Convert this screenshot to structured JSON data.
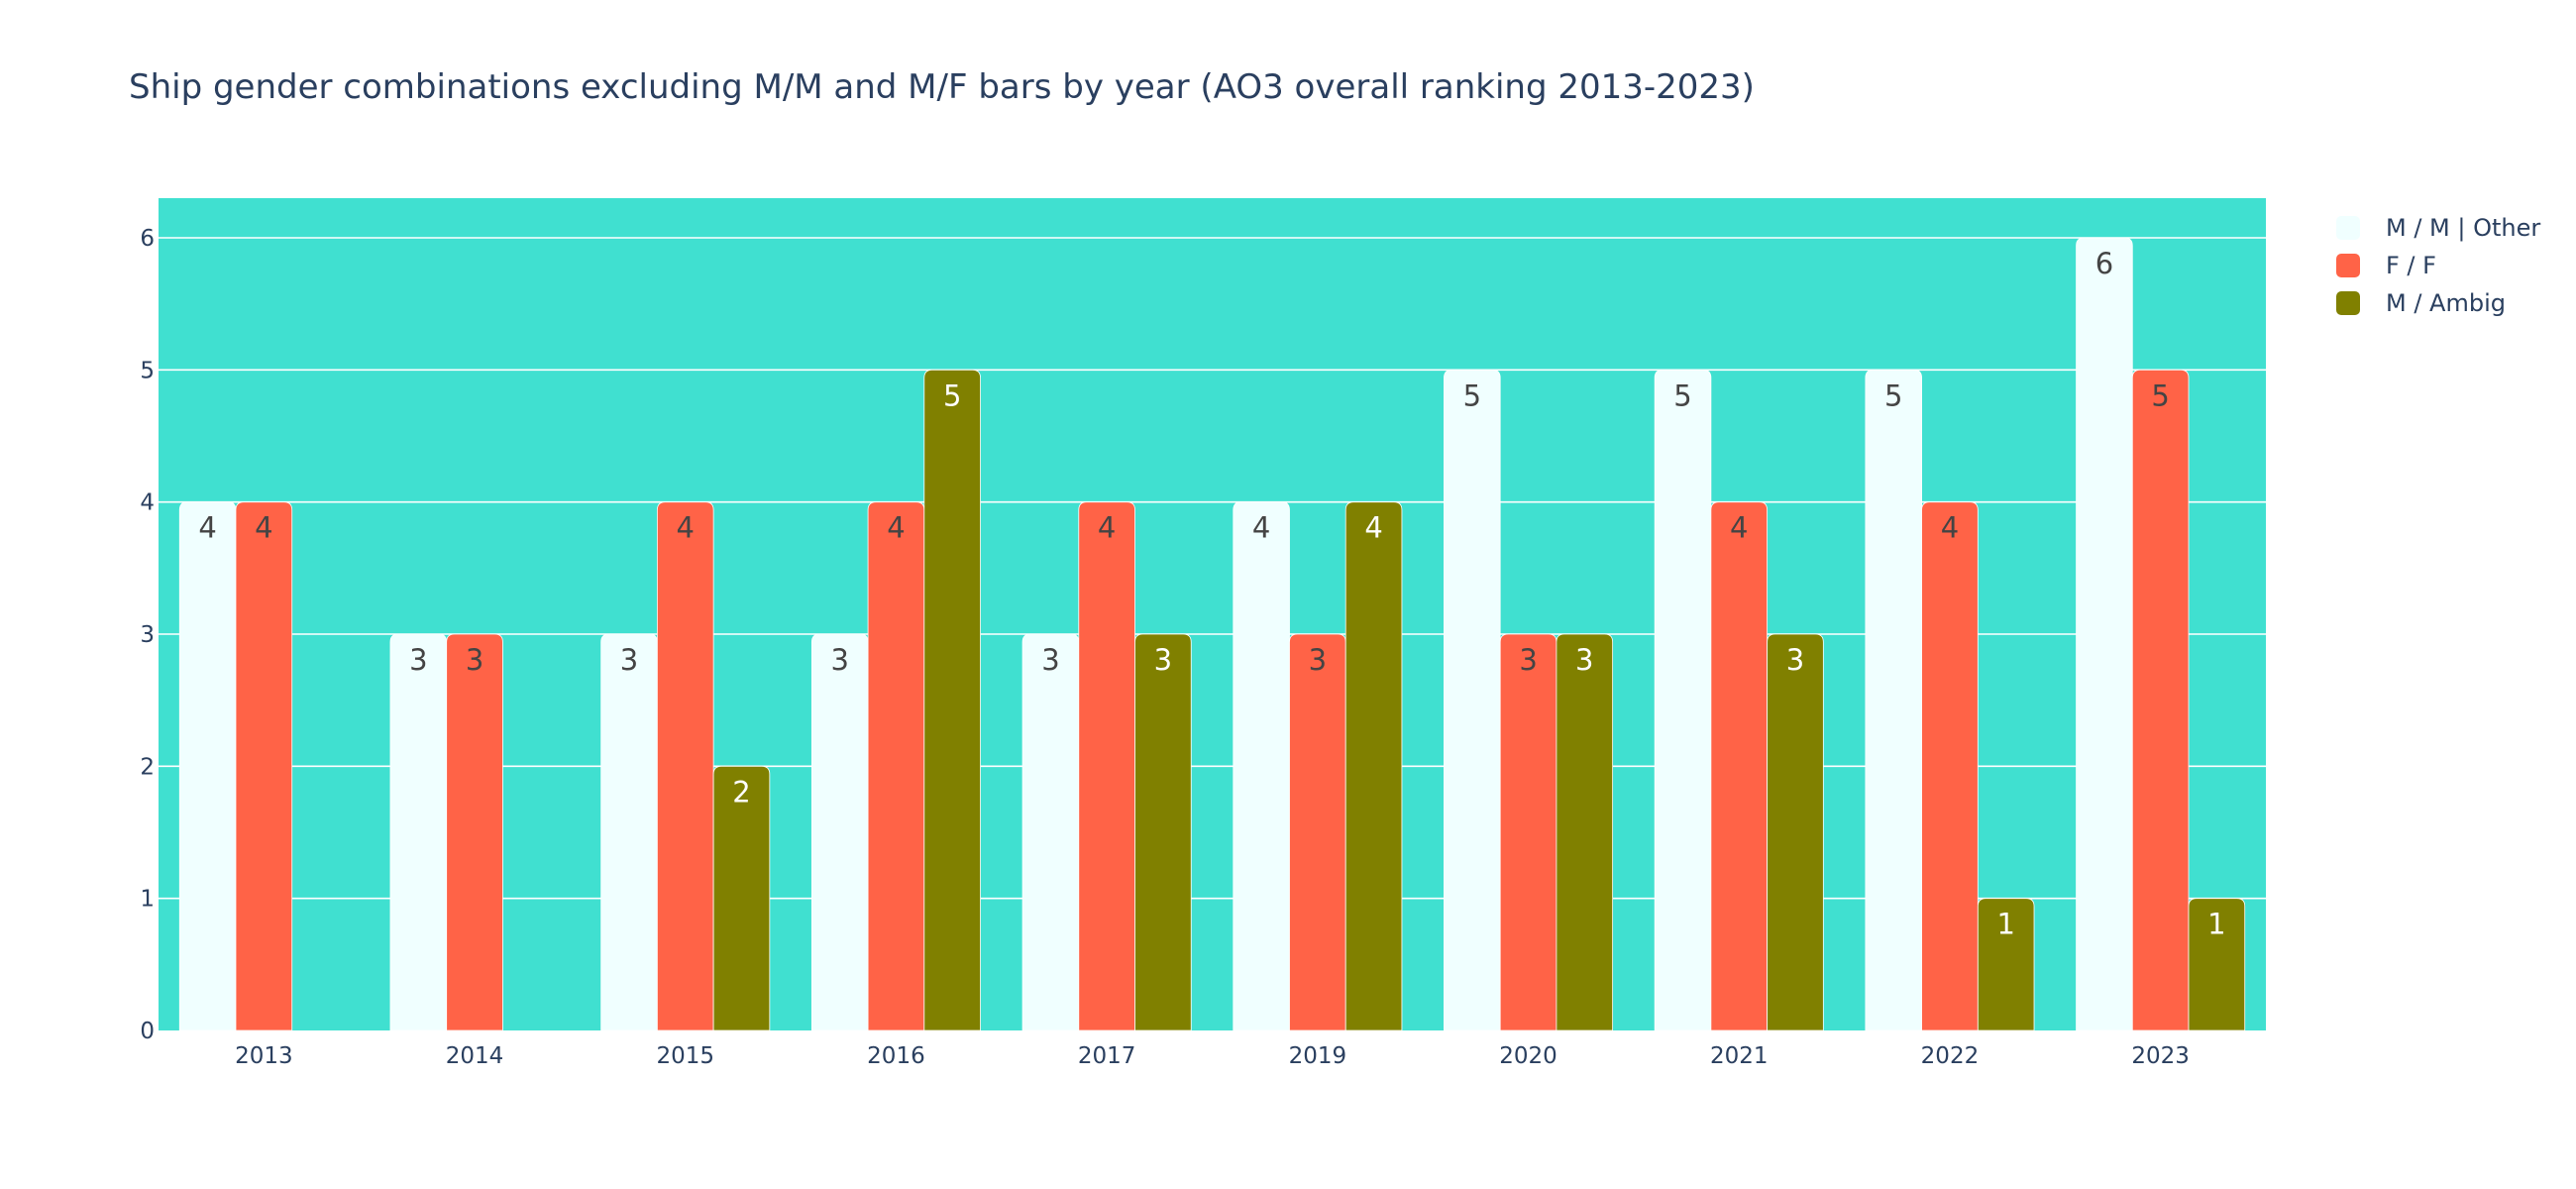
{
  "chart_data": {
    "type": "bar",
    "title": "Ship gender combinations excluding M/M and M/F bars by year (AO3 overall ranking 2013-2023)",
    "xlabel": "",
    "ylabel": "",
    "categories": [
      "2013",
      "2014",
      "2015",
      "2016",
      "2017",
      "2019",
      "2020",
      "2021",
      "2022",
      "2023"
    ],
    "ylim": [
      0,
      6.3
    ],
    "yticks": [
      0,
      1,
      2,
      3,
      4,
      5,
      6
    ],
    "grid": true,
    "legend_position": "top-right",
    "plot_background": "#40e0d0",
    "series": [
      {
        "name": "M / M | Other",
        "color": "#f0ffff",
        "label_color": "#444444",
        "values": [
          4,
          3,
          3,
          3,
          3,
          4,
          5,
          5,
          5,
          6
        ]
      },
      {
        "name": "F / F",
        "color": "#ff6347",
        "label_color": "#444444",
        "values": [
          4,
          3,
          4,
          4,
          4,
          3,
          3,
          4,
          4,
          5
        ]
      },
      {
        "name": "M / Ambig",
        "color": "#808000",
        "label_color": "#ffffff",
        "values": [
          null,
          null,
          2,
          5,
          3,
          4,
          3,
          3,
          1,
          1
        ]
      }
    ]
  }
}
